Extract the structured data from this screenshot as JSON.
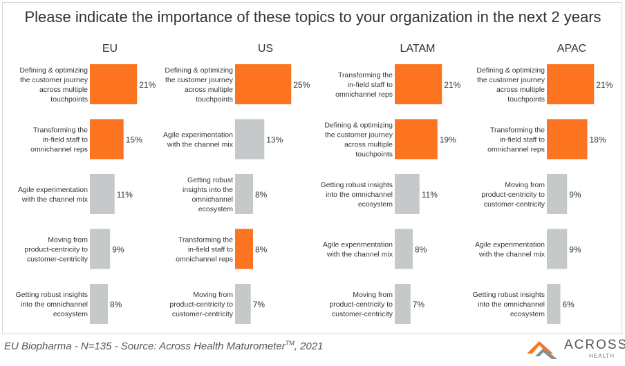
{
  "title": "Please indicate the importance of these topics to your organization in the next 2 years",
  "footer": {
    "prefix": "EU Biopharma - N=135  -  Source: Across Health Maturometer",
    "tm": "TM",
    "suffix": ", 2021"
  },
  "logo": {
    "name": "ACROSS",
    "sub": "HEALTH"
  },
  "colors": {
    "highlight": "#fd7420",
    "neutral": "#c6c9ca",
    "text": "#333333"
  },
  "chart_data": [
    {
      "type": "bar",
      "title": "EU",
      "categories": [
        "Defining & optimizing the customer journey across multiple touchpoints",
        "Transforming the in-field staff to omnichannel reps",
        "Agile experimentation with the channel mix",
        "Moving from product-centricity to customer-centricity",
        "Getting robust insights into the omnichannel ecosystem"
      ],
      "labels": [
        [
          "Defining & optimizing",
          "the customer journey",
          "across multiple",
          "touchpoints"
        ],
        [
          "Transforming the",
          "in-field staff to",
          "omnichannel reps"
        ],
        [
          "Agile experimentation",
          "with the channel mix"
        ],
        [
          "Moving from",
          "product-centricity to",
          "customer-centricity"
        ],
        [
          "Getting robust insights",
          "into  the omnichannel",
          "ecosystem"
        ]
      ],
      "values": [
        21,
        15,
        11,
        9,
        8
      ],
      "value_labels": [
        "21%",
        "15%",
        "11%",
        "9%",
        "8%"
      ],
      "highlighted": [
        true,
        true,
        false,
        false,
        false
      ]
    },
    {
      "type": "bar",
      "title": "US",
      "categories": [
        "Defining & optimizing the customer journey across multiple touchpoints",
        "Agile experimentation with the channel mix",
        "Getting robust insights into the omnichannel ecosystem",
        "Transforming the in-field staff to omnichannel reps",
        "Moving from product-centricity to customer-centricity"
      ],
      "labels": [
        [
          "Defining & optimizing",
          "the customer journey",
          "across multiple",
          "touchpoints"
        ],
        [
          "Agile experimentation",
          "with the channel mix"
        ],
        [
          "Getting robust",
          "insights into  the",
          "omnichannel",
          "ecosystem"
        ],
        [
          "Transforming the",
          "in-field staff to",
          "omnichannel reps"
        ],
        [
          "Moving from",
          "product-centricity to",
          "customer-centricity"
        ]
      ],
      "values": [
        25,
        13,
        8,
        8,
        7
      ],
      "value_labels": [
        "25%",
        "13%",
        "8%",
        "8%",
        "7%"
      ],
      "highlighted": [
        true,
        false,
        false,
        true,
        false
      ]
    },
    {
      "type": "bar",
      "title": "LATAM",
      "categories": [
        "Transforming the in-field staff to omnichannel reps",
        "Defining & optimizing the customer journey across multiple touchpoints",
        "Getting robust insights into the omnichannel ecosystem",
        "Agile experimentation with the channel mix",
        "Moving from product-centricity to customer-centricity"
      ],
      "labels": [
        [
          "Transforming the",
          "in-field staff to",
          "omnichannel reps"
        ],
        [
          "Defining & optimizing",
          "the customer journey",
          "across multiple",
          "touchpoints"
        ],
        [
          "Getting robust insights",
          "into  the omnichannel",
          "ecosystem"
        ],
        [
          "Agile experimentation",
          "with the channel mix"
        ],
        [
          "Moving from",
          "product-centricity to",
          "customer-centricity"
        ]
      ],
      "values": [
        21,
        19,
        11,
        8,
        7
      ],
      "value_labels": [
        "21%",
        "19%",
        "11%",
        "8%",
        "7%"
      ],
      "highlighted": [
        true,
        true,
        false,
        false,
        false
      ]
    },
    {
      "type": "bar",
      "title": "APAC",
      "categories": [
        "Defining & optimizing the customer journey across multiple touchpoints",
        "Transforming the in-field staff to omnichannel reps",
        "Moving from product-centricity to customer-centricity",
        "Agile experimentation with the channel mix",
        "Getting robust insights into the omnichannel ecosystem"
      ],
      "labels": [
        [
          "Defining & optimizing",
          "the customer journey",
          "across multiple",
          "touchpoints"
        ],
        [
          "Transforming the",
          "in-field staff to",
          "omnichannel reps"
        ],
        [
          "Moving from",
          "product-centricity to",
          "customer-centricity"
        ],
        [
          "Agile experimentation",
          "with the channel mix"
        ],
        [
          "Getting robust insights",
          "into  the omnichannel",
          "ecosystem"
        ]
      ],
      "values": [
        21,
        18,
        9,
        9,
        6
      ],
      "value_labels": [
        "21%",
        "18%",
        "9%",
        "9%",
        "6%"
      ],
      "highlighted": [
        true,
        true,
        false,
        false,
        false
      ]
    }
  ]
}
